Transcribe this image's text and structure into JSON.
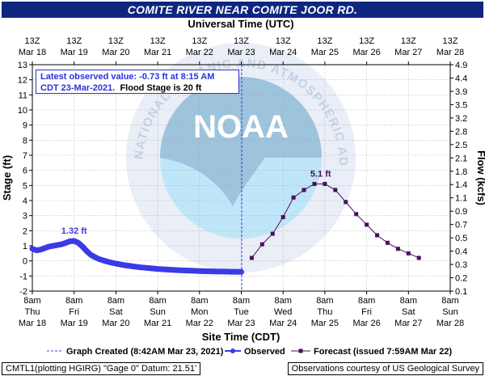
{
  "header": {
    "title": "COMITE RIVER NEAR COMITE JOOR RD."
  },
  "obs_box": {
    "line1": "Latest observed value: -0.73 ft at 8:15 AM",
    "line2a": "CDT 23-Mar-2021.",
    "line2b": "Flood Stage is 20 ft"
  },
  "watermark": {
    "center": "NOAA",
    "ring": "NATIONAL OCEANIC AND ATMOSPHERIC ADMINISTRATION · U.S. DEPARTMENT OF COMMERCE"
  },
  "legend": {
    "created": "Graph Created (8:42AM Mar 23, 2021)",
    "observed": "Observed",
    "forecast": "Forecast (issued 7:59AM Mar 22)"
  },
  "footer": {
    "left": "CMTL1(plotting HGIRG) \"Gage 0\" Datum: 21.51'",
    "right": "Observations courtesy of US Geological Survey"
  },
  "colors": {
    "title_bg": "#0e2680",
    "observed": "#3b3be6",
    "forecast": "#4a0f5e",
    "grid": "#a0a0a0",
    "created": "#3b3be6"
  },
  "chart_data": {
    "type": "line",
    "title": "COMITE RIVER NEAR COMITE JOOR RD.",
    "xlabel": "Site Time (CDT)",
    "xlabel_top": "Universal Time (UTC)",
    "ylabel": "Stage (ft)",
    "ylabel_right": "Flow (kcfs)",
    "ylim": [
      -2,
      13
    ],
    "xlim_days": [
      0,
      10
    ],
    "y_ticks": [
      -2,
      -1,
      0,
      1,
      2,
      3,
      4,
      5,
      6,
      7,
      8,
      9,
      10,
      11,
      12,
      13
    ],
    "right_ticks": [
      "0.1",
      "0.2",
      "0.3",
      "0.4",
      "0.5",
      "0.7",
      "0.9",
      "1.1",
      "1.4",
      "1.8",
      "2.1",
      "2.5",
      "2.8",
      "3.2",
      "3.5",
      "3.9",
      "4.4",
      "4.9"
    ],
    "top_ticks": [
      {
        "l1": "13Z",
        "l2": "Mar 18"
      },
      {
        "l1": "13Z",
        "l2": "Mar 19"
      },
      {
        "l1": "13Z",
        "l2": "Mar 20"
      },
      {
        "l1": "13Z",
        "l2": "Mar 21"
      },
      {
        "l1": "13Z",
        "l2": "Mar 22"
      },
      {
        "l1": "13Z",
        "l2": "Mar 23"
      },
      {
        "l1": "13Z",
        "l2": "Mar 24"
      },
      {
        "l1": "13Z",
        "l2": "Mar 25"
      },
      {
        "l1": "13Z",
        "l2": "Mar 26"
      },
      {
        "l1": "13Z",
        "l2": "Mar 27"
      },
      {
        "l1": "13Z",
        "l2": "Mar 28"
      }
    ],
    "bottom_ticks": [
      {
        "l1": "8am",
        "l2": "Thu",
        "l3": "Mar 18"
      },
      {
        "l1": "8am",
        "l2": "Fri",
        "l3": "Mar 19"
      },
      {
        "l1": "8am",
        "l2": "Sat",
        "l3": "Mar 20"
      },
      {
        "l1": "8am",
        "l2": "Sun",
        "l3": "Mar 21"
      },
      {
        "l1": "8am",
        "l2": "Mon",
        "l3": "Mar 22"
      },
      {
        "l1": "8am",
        "l2": "Tue",
        "l3": "Mar 23"
      },
      {
        "l1": "8am",
        "l2": "Wed",
        "l3": "Mar 24"
      },
      {
        "l1": "8am",
        "l2": "Thu",
        "l3": "Mar 25"
      },
      {
        "l1": "8am",
        "l2": "Fri",
        "l3": "Mar 26"
      },
      {
        "l1": "8am",
        "l2": "Sat",
        "l3": "Mar 27"
      },
      {
        "l1": "8am",
        "l2": "Sun",
        "l3": "Mar 28"
      }
    ],
    "graph_created_day": 5.01,
    "series": [
      {
        "name": "Observed",
        "x": [
          0,
          0.1,
          0.2,
          0.3,
          0.4,
          0.5,
          0.6,
          0.7,
          0.8,
          0.9,
          1.0,
          1.1,
          1.2,
          1.3,
          1.4,
          1.5,
          1.6,
          1.7,
          1.8,
          1.9,
          2.0,
          2.2,
          2.4,
          2.6,
          2.8,
          3.0,
          3.2,
          3.4,
          3.6,
          3.8,
          4.0,
          4.2,
          4.4,
          4.6,
          4.8,
          5.0
        ],
        "y": [
          0.8,
          0.7,
          0.75,
          0.85,
          0.95,
          1.0,
          1.05,
          1.1,
          1.2,
          1.3,
          1.32,
          1.2,
          0.95,
          0.65,
          0.4,
          0.25,
          0.12,
          0.03,
          -0.05,
          -0.12,
          -0.18,
          -0.28,
          -0.36,
          -0.43,
          -0.48,
          -0.53,
          -0.57,
          -0.6,
          -0.63,
          -0.65,
          -0.67,
          -0.69,
          -0.7,
          -0.71,
          -0.72,
          -0.73
        ]
      },
      {
        "name": "Forecast",
        "x": [
          5.25,
          5.5,
          5.75,
          6.0,
          6.25,
          6.5,
          6.75,
          7.0,
          7.25,
          7.5,
          7.75,
          8.0,
          8.25,
          8.5,
          8.75,
          9.0,
          9.25
        ],
        "y": [
          0.2,
          1.1,
          1.8,
          2.9,
          4.2,
          4.7,
          5.1,
          5.1,
          4.7,
          3.9,
          3.1,
          2.4,
          1.7,
          1.2,
          0.8,
          0.5,
          0.2
        ]
      }
    ],
    "annotations": [
      {
        "text": "1.32 ft",
        "x": 1.0,
        "y": 1.32
      },
      {
        "text": "5.1 ft",
        "x": 6.9,
        "y": 5.1
      }
    ]
  }
}
